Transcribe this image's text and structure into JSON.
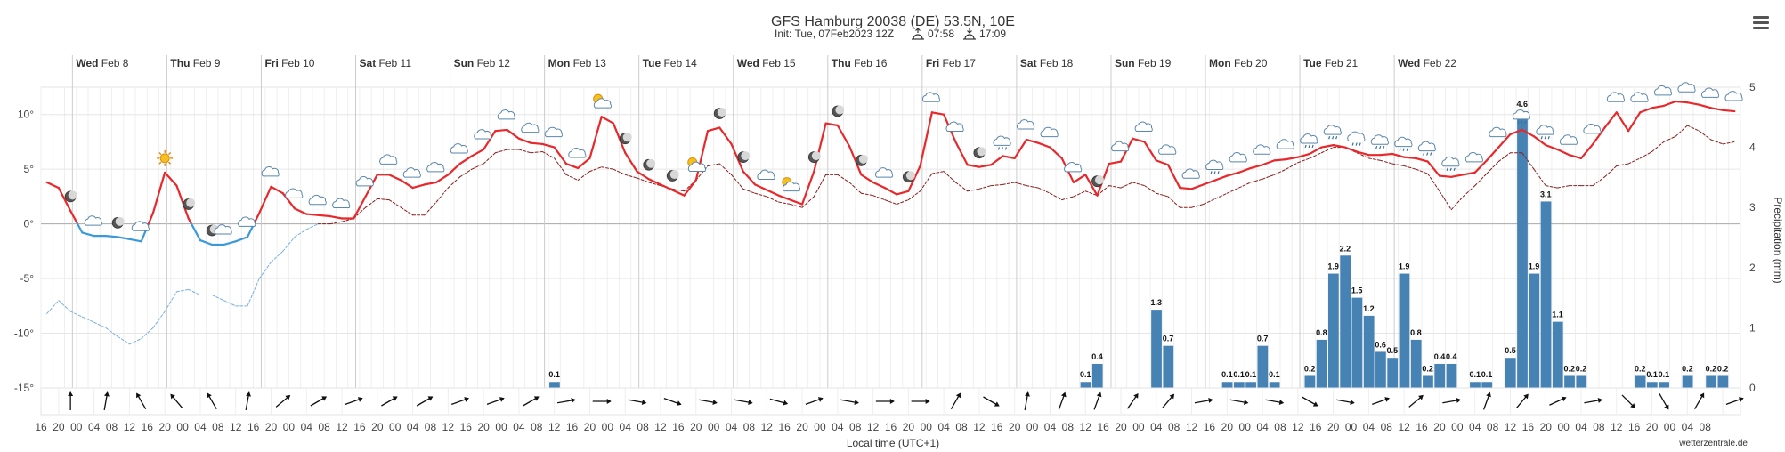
{
  "title": "GFS Hamburg 20038 (DE) 53.5N, 10E",
  "subtitle_init": "Init: Tue, 07Feb2023 12Z",
  "sunrise": "07:58",
  "sunset": "17:09",
  "credit": "wetterzentrale.de",
  "colors": {
    "temp": "#e8282b",
    "temp_cold": "#3a9ad9",
    "dew": "#8b1d1d",
    "dew_cold": "#7ab0e0",
    "precip": "#4682b4"
  },
  "icons": {
    "sun": "sun-icon",
    "cloud": "cloud-icon",
    "moon": "moon-icon",
    "partly": "partly-cloudy-icon",
    "rain": "rain-cloud-icon"
  },
  "chart_data": {
    "type": "line",
    "xlabel": "Local time (UTC+1)",
    "ylabel_left": "",
    "ylabel_right": "Precipitation (mm)",
    "y_left_ticks": [
      "10°",
      "5°",
      "0°",
      "-5°",
      "-10°",
      "-15°"
    ],
    "y_right_ticks": [
      "5",
      "4",
      "3",
      "2",
      "1",
      "0"
    ],
    "ylim": [
      -15,
      12.5
    ],
    "y2lim": [
      0,
      5
    ],
    "days": [
      {
        "name": "Wed",
        "date": "Feb 8"
      },
      {
        "name": "Thu",
        "date": "Feb 9"
      },
      {
        "name": "Fri",
        "date": "Feb 10"
      },
      {
        "name": "Sat",
        "date": "Feb 11"
      },
      {
        "name": "Sun",
        "date": "Feb 12"
      },
      {
        "name": "Mon",
        "date": "Feb 13"
      },
      {
        "name": "Tue",
        "date": "Feb 14"
      },
      {
        "name": "Wed",
        "date": "Feb 15"
      },
      {
        "name": "Thu",
        "date": "Feb 16"
      },
      {
        "name": "Fri",
        "date": "Feb 17"
      },
      {
        "name": "Sat",
        "date": "Feb 18"
      },
      {
        "name": "Sun",
        "date": "Feb 19"
      },
      {
        "name": "Mon",
        "date": "Feb 20"
      },
      {
        "name": "Tue",
        "date": "Feb 21"
      },
      {
        "name": "Wed",
        "date": "Feb 22"
      }
    ],
    "hour_ticks": [
      "16",
      "20",
      "00",
      "04",
      "08",
      "12",
      "16",
      "20",
      "00",
      "04",
      "08",
      "12",
      "16",
      "20",
      "00",
      "04",
      "08",
      "12",
      "16",
      "20",
      "00",
      "04",
      "08",
      "12",
      "16",
      "20",
      "00",
      "04",
      "08",
      "12",
      "16",
      "20",
      "00",
      "04",
      "08",
      "12",
      "16",
      "20",
      "00",
      "04",
      "08",
      "12",
      "16",
      "20",
      "00",
      "04",
      "08",
      "12",
      "16",
      "20",
      "00",
      "04",
      "08",
      "12",
      "16",
      "20",
      "00",
      "04",
      "08",
      "12",
      "16",
      "20",
      "00",
      "04",
      "08",
      "12",
      "16",
      "20",
      "00",
      "04",
      "08",
      "12",
      "16",
      "20",
      "00",
      "04",
      "08",
      "12",
      "16",
      "20",
      "00",
      "04",
      "08",
      "12",
      "16",
      "20",
      "00",
      "04",
      "08",
      "12",
      "16",
      "20",
      "00",
      "04",
      "08"
    ],
    "hours_start": 16,
    "temperature": [
      3.8,
      3.3,
      1.2,
      -0.8,
      -1.1,
      -1.1,
      -1.2,
      -1.4,
      -1.6,
      1.0,
      4.7,
      3.5,
      0.5,
      -1.5,
      -1.9,
      -1.9,
      -1.6,
      -1.2,
      1.0,
      3.4,
      2.8,
      1.4,
      0.9,
      0.8,
      0.7,
      0.5,
      0.5,
      2.5,
      4.5,
      4.5,
      4.0,
      3.3,
      3.6,
      3.8,
      4.5,
      5.5,
      6.2,
      6.8,
      8.5,
      8.6,
      7.8,
      7.4,
      7.3,
      7.0,
      5.5,
      5.1,
      6.0,
      9.8,
      9.2,
      6.5,
      4.8,
      4.1,
      3.6,
      3.1,
      2.6,
      4.0,
      8.5,
      8.8,
      7.3,
      4.8,
      3.6,
      3.1,
      2.6,
      2.2,
      1.8,
      4.8,
      9.2,
      9.0,
      7.1,
      4.5,
      3.8,
      3.3,
      2.7,
      3.0,
      5.3,
      10.2,
      10.0,
      7.5,
      5.4,
      5.2,
      5.4,
      6.2,
      6.0,
      7.7,
      7.4,
      7.0,
      6.0,
      3.8,
      4.5,
      2.6,
      5.5,
      5.7,
      7.8,
      7.5,
      5.8,
      5.4,
      3.3,
      3.2,
      3.6,
      4.0,
      4.4,
      4.7,
      5.1,
      5.4,
      5.8,
      5.9,
      6.1,
      6.4,
      7.0,
      7.2,
      7.0,
      6.6,
      6.3,
      6.3,
      6.4,
      6.1,
      6.0,
      5.7,
      4.4,
      4.3,
      4.5,
      4.7,
      5.8,
      7.0,
      8.2,
      8.6,
      8.0,
      7.2,
      6.8,
      6.3,
      6.0,
      7.3,
      8.8,
      10.2,
      8.5,
      10.2,
      10.6,
      10.8,
      11.2,
      11.1,
      10.9,
      10.6,
      10.4,
      10.3
    ],
    "dew_point": [
      -8.2,
      -7.0,
      -8.0,
      -8.5,
      -9.0,
      -9.5,
      -10.3,
      -11.0,
      -10.5,
      -9.5,
      -8.0,
      -6.2,
      -6.0,
      -6.5,
      -6.5,
      -7.0,
      -7.5,
      -7.5,
      -5.0,
      -3.5,
      -2.5,
      -1.2,
      -0.5,
      0.0,
      0.0,
      0.2,
      0.5,
      1.5,
      2.3,
      2.2,
      1.5,
      0.8,
      0.8,
      2.0,
      3.3,
      4.3,
      5.0,
      5.5,
      6.5,
      6.8,
      6.8,
      6.5,
      6.6,
      6.0,
      4.5,
      4.0,
      4.8,
      5.2,
      5.0,
      4.5,
      4.2,
      3.8,
      3.5,
      3.2,
      3.0,
      4.0,
      5.3,
      5.5,
      4.5,
      3.2,
      2.8,
      2.5,
      2.0,
      1.8,
      1.5,
      2.5,
      4.5,
      4.5,
      3.8,
      2.8,
      2.6,
      2.2,
      1.8,
      2.2,
      3.0,
      4.6,
      4.8,
      3.8,
      3.0,
      3.2,
      3.5,
      3.6,
      3.8,
      3.5,
      3.3,
      2.8,
      2.2,
      2.5,
      3.0,
      2.6,
      3.5,
      3.3,
      3.8,
      3.5,
      2.8,
      2.5,
      1.5,
      1.5,
      1.8,
      2.3,
      2.8,
      3.3,
      3.8,
      4.1,
      4.5,
      5.0,
      5.6,
      6.0,
      6.5,
      7.0,
      7.0,
      6.5,
      6.0,
      5.8,
      5.5,
      5.3,
      5.0,
      4.6,
      3.0,
      1.3,
      2.5,
      3.5,
      4.6,
      5.7,
      6.5,
      6.5,
      5.0,
      3.5,
      3.3,
      3.5,
      3.5,
      3.5,
      4.3,
      5.3,
      5.5,
      6.0,
      6.6,
      7.5,
      8.0,
      9.0,
      8.5,
      7.7,
      7.3,
      7.5
    ],
    "precipitation": [
      0,
      0,
      0,
      0,
      0,
      0,
      0,
      0,
      0,
      0,
      0,
      0,
      0,
      0,
      0,
      0,
      0,
      0,
      0,
      0,
      0,
      0,
      0,
      0,
      0,
      0,
      0,
      0,
      0,
      0,
      0,
      0,
      0,
      0,
      0,
      0,
      0,
      0,
      0,
      0,
      0,
      0,
      0,
      0.1,
      0,
      0,
      0,
      0,
      0,
      0,
      0,
      0,
      0,
      0,
      0,
      0,
      0,
      0,
      0,
      0,
      0,
      0,
      0,
      0,
      0,
      0,
      0,
      0,
      0,
      0,
      0,
      0,
      0,
      0,
      0,
      0,
      0,
      0,
      0,
      0,
      0,
      0,
      0,
      0,
      0,
      0,
      0,
      0,
      0.1,
      0.4,
      0,
      0,
      0,
      0,
      1.3,
      0.7,
      0,
      0,
      0,
      0,
      0.1,
      0.1,
      0.1,
      0.7,
      0.1,
      0,
      0,
      0.2,
      0.8,
      1.9,
      2.2,
      1.5,
      1.2,
      0.6,
      0.5,
      1.9,
      0.8,
      0.2,
      0.4,
      0.4,
      0,
      0.1,
      0.1,
      0,
      0.5,
      4.6,
      1.9,
      3.1,
      1.1,
      0.2,
      0.2,
      0,
      0,
      0,
      0,
      0.2,
      0.1,
      0.1,
      0,
      0.2,
      0,
      0.2,
      0.2
    ],
    "precip_labels": [
      {
        "i": 43,
        "v": "0.1"
      },
      {
        "i": 88,
        "v": "0.1"
      },
      {
        "i": 89,
        "v": "0.4"
      },
      {
        "i": 94,
        "v": "1.3"
      },
      {
        "i": 95,
        "v": "0.7"
      },
      {
        "i": 100,
        "v": "0.1"
      },
      {
        "i": 101,
        "v": "0.1"
      },
      {
        "i": 102,
        "v": "0.1"
      },
      {
        "i": 103,
        "v": "0.7"
      },
      {
        "i": 104,
        "v": "0.1"
      },
      {
        "i": 107,
        "v": "0.2"
      },
      {
        "i": 108,
        "v": "0.8"
      },
      {
        "i": 109,
        "v": "1.9"
      },
      {
        "i": 110,
        "v": "2.2"
      },
      {
        "i": 111,
        "v": "1.5"
      },
      {
        "i": 112,
        "v": "1.2"
      },
      {
        "i": 113,
        "v": "0.6"
      },
      {
        "i": 114,
        "v": "0.5"
      },
      {
        "i": 115,
        "v": "1.9"
      },
      {
        "i": 116,
        "v": "0.8"
      },
      {
        "i": 117,
        "v": "0.2"
      },
      {
        "i": 118,
        "v": "0.4"
      },
      {
        "i": 119,
        "v": "0.4"
      },
      {
        "i": 121,
        "v": "0.1"
      },
      {
        "i": 122,
        "v": "0.1"
      },
      {
        "i": 124,
        "v": "0.5"
      },
      {
        "i": 125,
        "v": "4.6"
      },
      {
        "i": 126,
        "v": "1.9"
      },
      {
        "i": 127,
        "v": "3.1"
      },
      {
        "i": 128,
        "v": "1.1"
      },
      {
        "i": 129,
        "v": "0.2"
      },
      {
        "i": 130,
        "v": "0.2"
      },
      {
        "i": 135,
        "v": "0.2"
      },
      {
        "i": 136,
        "v": "0.1"
      },
      {
        "i": 137,
        "v": "0.1"
      },
      {
        "i": 139,
        "v": "0.2"
      },
      {
        "i": 141,
        "v": "0.2"
      },
      {
        "i": 142,
        "v": "0.2"
      }
    ],
    "weather_icons": [
      {
        "i": 2,
        "type": "moon"
      },
      {
        "i": 4,
        "type": "cloud"
      },
      {
        "i": 6,
        "type": "moon"
      },
      {
        "i": 8,
        "type": "cloud"
      },
      {
        "i": 10,
        "type": "sun"
      },
      {
        "i": 12,
        "type": "moon"
      },
      {
        "i": 14,
        "type": "moon"
      },
      {
        "i": 15,
        "type": "cloud"
      },
      {
        "i": 17,
        "type": "cloud"
      },
      {
        "i": 19,
        "type": "cloud"
      },
      {
        "i": 21,
        "type": "cloud"
      },
      {
        "i": 23,
        "type": "cloud"
      },
      {
        "i": 25,
        "type": "cloud"
      },
      {
        "i": 27,
        "type": "cloud"
      },
      {
        "i": 29,
        "type": "cloud"
      },
      {
        "i": 31,
        "type": "cloud"
      },
      {
        "i": 33,
        "type": "cloud"
      },
      {
        "i": 35,
        "type": "cloud"
      },
      {
        "i": 37,
        "type": "cloud"
      },
      {
        "i": 39,
        "type": "cloud"
      },
      {
        "i": 41,
        "type": "cloud"
      },
      {
        "i": 43,
        "type": "cloud"
      },
      {
        "i": 45,
        "type": "cloud"
      },
      {
        "i": 47,
        "type": "partly"
      },
      {
        "i": 49,
        "type": "moon"
      },
      {
        "i": 51,
        "type": "moon"
      },
      {
        "i": 53,
        "type": "moon"
      },
      {
        "i": 55,
        "type": "partly"
      },
      {
        "i": 57,
        "type": "moon"
      },
      {
        "i": 59,
        "type": "moon"
      },
      {
        "i": 61,
        "type": "cloud"
      },
      {
        "i": 63,
        "type": "partly"
      },
      {
        "i": 65,
        "type": "moon"
      },
      {
        "i": 67,
        "type": "moon"
      },
      {
        "i": 69,
        "type": "moon"
      },
      {
        "i": 71,
        "type": "cloud"
      },
      {
        "i": 73,
        "type": "moon"
      },
      {
        "i": 75,
        "type": "cloud"
      },
      {
        "i": 77,
        "type": "cloud"
      },
      {
        "i": 79,
        "type": "moon"
      },
      {
        "i": 81,
        "type": "rain"
      },
      {
        "i": 83,
        "type": "cloud"
      },
      {
        "i": 85,
        "type": "cloud"
      },
      {
        "i": 87,
        "type": "cloud"
      },
      {
        "i": 89,
        "type": "moon"
      },
      {
        "i": 91,
        "type": "cloud"
      },
      {
        "i": 93,
        "type": "cloud"
      },
      {
        "i": 95,
        "type": "cloud"
      },
      {
        "i": 97,
        "type": "cloud"
      },
      {
        "i": 99,
        "type": "rain"
      },
      {
        "i": 101,
        "type": "cloud"
      },
      {
        "i": 103,
        "type": "cloud"
      },
      {
        "i": 105,
        "type": "cloud"
      },
      {
        "i": 107,
        "type": "rain"
      },
      {
        "i": 109,
        "type": "rain"
      },
      {
        "i": 111,
        "type": "rain"
      },
      {
        "i": 113,
        "type": "rain"
      },
      {
        "i": 115,
        "type": "rain"
      },
      {
        "i": 117,
        "type": "rain"
      },
      {
        "i": 119,
        "type": "rain"
      },
      {
        "i": 121,
        "type": "cloud"
      },
      {
        "i": 123,
        "type": "cloud"
      },
      {
        "i": 125,
        "type": "rain"
      },
      {
        "i": 127,
        "type": "rain"
      },
      {
        "i": 129,
        "type": "cloud"
      },
      {
        "i": 131,
        "type": "cloud"
      },
      {
        "i": 133,
        "type": "cloud"
      },
      {
        "i": 135,
        "type": "cloud"
      },
      {
        "i": 137,
        "type": "cloud"
      },
      {
        "i": 139,
        "type": "cloud"
      },
      {
        "i": 141,
        "type": "cloud"
      },
      {
        "i": 143,
        "type": "cloud"
      }
    ],
    "wind_dirs": [
      180,
      190,
      150,
      140,
      150,
      190,
      230,
      240,
      250,
      240,
      240,
      250,
      250,
      240,
      260,
      270,
      280,
      290,
      280,
      280,
      285,
      250,
      280,
      270,
      270,
      210,
      300,
      190,
      200,
      200,
      215,
      220,
      260,
      280,
      280,
      300,
      280,
      250,
      230,
      260,
      200,
      220,
      245,
      260,
      315,
      330,
      210,
      250,
      300,
      290,
      280
    ],
    "grid": true,
    "legend": "none"
  }
}
